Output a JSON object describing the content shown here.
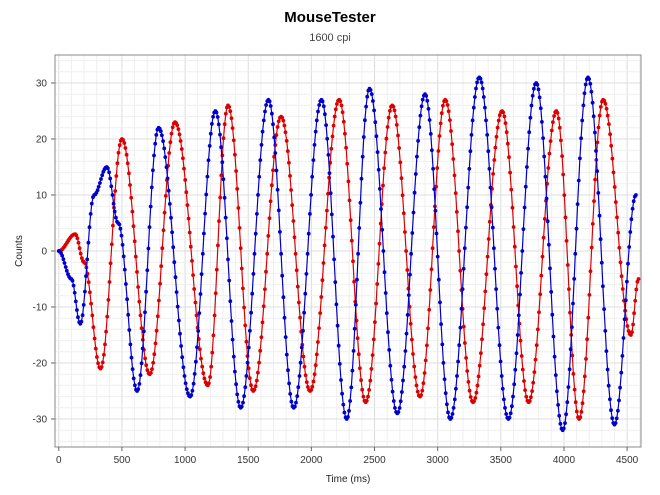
{
  "chart_data": {
    "type": "scatter",
    "title": "MouseTester",
    "subtitle": "1600 cpi",
    "xlabel": "Time (ms)",
    "ylabel": "Counts",
    "xlim": [
      -30,
      4610
    ],
    "ylim": [
      -35,
      35
    ],
    "xticks": [
      0,
      500,
      1000,
      1500,
      2000,
      2500,
      3000,
      3500,
      4000,
      4500
    ],
    "yticks": [
      30,
      20,
      10,
      0,
      -10,
      -20,
      -30
    ],
    "grid": true,
    "series": [
      {
        "color": "#0000cc",
        "x": [
          0,
          100,
          170,
          280,
          380,
          470,
          620,
          790,
          1040,
          1240,
          1440,
          1660,
          1860,
          2080,
          2280,
          2460,
          2680,
          2900,
          3100,
          3330,
          3560,
          3780,
          3990,
          4190,
          4400,
          4570
        ],
        "values": [
          0,
          -5,
          -13,
          10,
          15,
          5,
          -25,
          22,
          -26,
          25,
          -28,
          27,
          -28,
          27,
          -30,
          29,
          -29,
          28,
          -30,
          31,
          -30,
          30,
          -32,
          31,
          -31,
          10
        ]
      },
      {
        "color": "#dd0000",
        "x": [
          0,
          130,
          200,
          330,
          500,
          720,
          920,
          1180,
          1340,
          1540,
          1760,
          1990,
          2220,
          2430,
          2640,
          2860,
          3060,
          3280,
          3510,
          3720,
          3940,
          4120,
          4310,
          4530,
          4590
        ],
        "values": [
          0,
          3,
          -2,
          -21,
          20,
          -22,
          23,
          -24,
          26,
          -25,
          24,
          -25,
          27,
          -27,
          26,
          -26,
          27,
          -27,
          25,
          -27,
          25,
          -30,
          27,
          -15,
          -5
        ]
      }
    ]
  }
}
